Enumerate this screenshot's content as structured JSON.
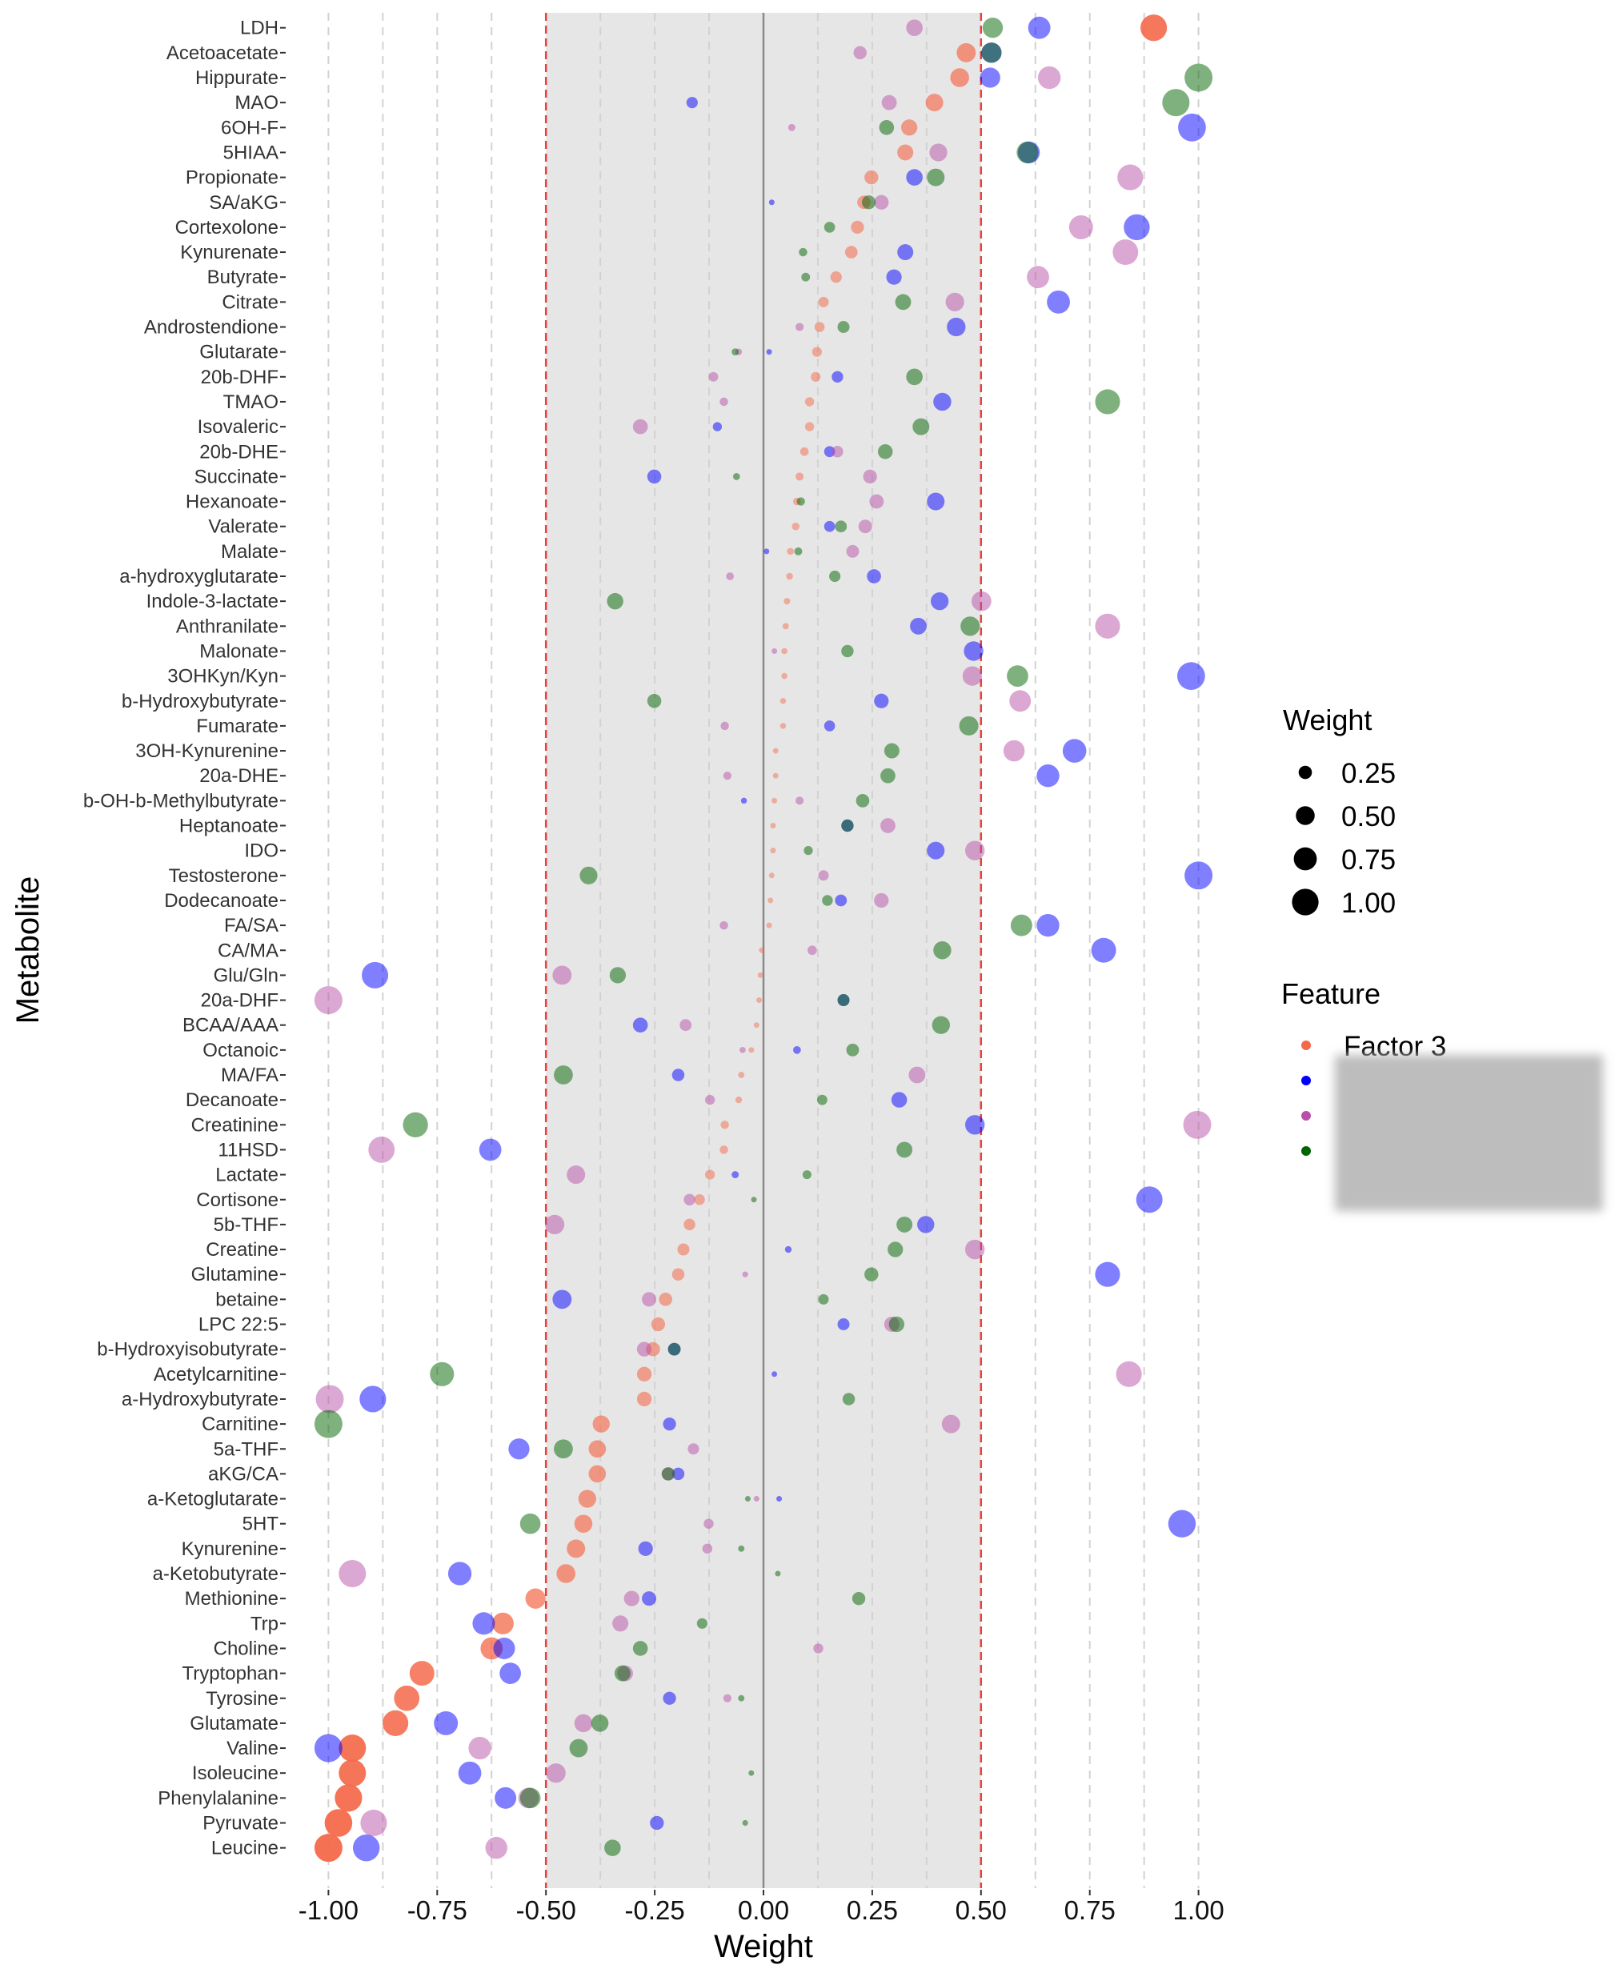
{
  "chart_data": {
    "type": "scatter",
    "xlabel": "Weight",
    "ylabel": "Metabolite",
    "xlim": [
      -1.0,
      1.0
    ],
    "xticks": [
      "-1.00",
      "-0.75",
      "-0.50",
      "-0.25",
      "0.00",
      "0.25",
      "0.50",
      "0.75",
      "1.00"
    ],
    "grid": true,
    "shaded_band": [
      -0.5,
      0.5
    ],
    "reference_lines": {
      "dashed_red": [
        -0.5,
        0.5
      ],
      "solid_gray": [
        0
      ]
    },
    "categories": [
      "LDH",
      "Acetoacetate",
      "Hippurate",
      "MAO",
      "6OH-F",
      "5HIAA",
      "Propionate",
      "SA/aKG",
      "Cortexolone",
      "Kynurenate",
      "Butyrate",
      "Citrate",
      "Androstendione",
      "Glutarate",
      "20b-DHF",
      "TMAO",
      "Isovaleric",
      "20b-DHE",
      "Succinate",
      "Hexanoate",
      "Valerate",
      "Malate",
      "a-hydroxyglutarate",
      "Indole-3-lactate",
      "Anthranilate",
      "Malonate",
      "3OHKyn/Kyn",
      "b-Hydroxybutyrate",
      "Fumarate",
      "3OH-Kynurenine",
      "20a-DHE",
      "b-OH-b-Methylbutyrate",
      "Heptanoate",
      "IDO",
      "Testosterone",
      "Dodecanoate",
      "FA/SA",
      "CA/MA",
      "Glu/Gln",
      "20a-DHF",
      "BCAA/AAA",
      "Octanoic",
      "MA/FA",
      "Decanoate",
      "Creatinine",
      "11HSD",
      "Lactate",
      "Cortisone",
      "5b-THF",
      "Creatine",
      "Glutamine",
      "betaine",
      "LPC 22:5",
      "b-Hydroxyisobutyrate",
      "Acetylcarnitine",
      "a-Hydroxybutyrate",
      "Carnitine",
      "5a-THF",
      "aKG/CA",
      "a-Ketoglutarate",
      "5HT",
      "Kynurenine",
      "a-Ketobutyrate",
      "Methionine",
      "Trp",
      "Choline",
      "Tryptophan",
      "Tyrosine",
      "Glutamate",
      "Valine",
      "Isoleucine",
      "Phenylalanine",
      "Pyruvate",
      "Leucine"
    ],
    "size_legend": {
      "title": "Weight",
      "labels": [
        "0.25",
        "0.50",
        "0.75",
        "1.00"
      ],
      "values": [
        0.25,
        0.5,
        0.75,
        1.0
      ]
    },
    "color_legend": {
      "title": "Feature",
      "redacted": true
    },
    "legend_position": "right",
    "series": [
      {
        "name": "Factor 3",
        "color": "#f4694a",
        "values": [
          0.897,
          0.466,
          0.451,
          0.393,
          0.335,
          0.326,
          0.248,
          0.231,
          0.216,
          0.202,
          0.167,
          0.138,
          0.129,
          0.123,
          0.12,
          0.106,
          0.106,
          0.094,
          0.083,
          0.077,
          0.074,
          0.062,
          0.06,
          0.054,
          0.051,
          0.048,
          0.048,
          0.045,
          0.045,
          0.028,
          0.028,
          0.025,
          0.022,
          0.022,
          0.019,
          0.016,
          0.013,
          -0.004,
          -0.007,
          -0.01,
          -0.016,
          -0.028,
          -0.051,
          -0.057,
          -0.089,
          -0.091,
          -0.123,
          -0.147,
          -0.17,
          -0.184,
          -0.196,
          -0.225,
          -0.242,
          -0.254,
          -0.274,
          -0.274,
          -0.373,
          -0.382,
          -0.382,
          -0.405,
          -0.414,
          -0.431,
          -0.454,
          -0.524,
          -0.599,
          -0.625,
          -0.785,
          -0.82,
          -0.846,
          -0.945,
          -0.945,
          -0.954,
          -0.977,
          -1.0
        ]
      },
      {
        "color": "#0000ff",
        "values": [
          0.634,
          0.524,
          0.521,
          -0.164,
          0.985,
          0.61,
          0.347,
          0.019,
          0.858,
          0.326,
          0.3,
          0.678,
          0.443,
          0.013,
          0.17,
          0.411,
          -0.106,
          0.152,
          -0.251,
          0.396,
          0.152,
          0.007,
          0.254,
          0.405,
          0.356,
          0.483,
          0.983,
          0.271,
          0.152,
          0.715,
          0.654,
          -0.045,
          0.193,
          0.396,
          1.0,
          0.178,
          0.654,
          0.782,
          -0.893,
          0.184,
          -0.283,
          0.077,
          -0.196,
          0.312,
          0.486,
          -0.628,
          -0.065,
          0.887,
          0.373,
          0.057,
          0.791,
          -0.463,
          0.184,
          -0.205,
          0.025,
          -0.898,
          -0.216,
          -0.562,
          -0.196,
          0.036,
          0.962,
          -0.271,
          -0.698,
          -0.263,
          -0.643,
          -0.596,
          -0.582,
          -0.216,
          -0.73,
          -1.0,
          -0.675,
          -0.593,
          -0.245,
          -0.913
        ]
      },
      {
        "color": "#b84fa8",
        "values": [
          0.347,
          0.222,
          0.657,
          0.289,
          0.065,
          0.402,
          0.843,
          0.271,
          0.73,
          0.832,
          0.631,
          0.44,
          0.083,
          -0.057,
          -0.115,
          -0.091,
          -0.283,
          0.17,
          0.245,
          0.26,
          0.234,
          0.205,
          -0.077,
          0.501,
          0.791,
          0.025,
          0.48,
          0.59,
          -0.089,
          0.576,
          -0.083,
          0.083,
          0.286,
          0.486,
          0.138,
          0.271,
          -0.091,
          0.112,
          -0.463,
          -1.0,
          -0.179,
          -0.048,
          0.353,
          -0.123,
          0.997,
          -0.878,
          -0.431,
          -0.17,
          -0.48,
          0.486,
          -0.042,
          -0.263,
          0.295,
          -0.274,
          0.84,
          -0.997,
          0.431,
          -0.161,
          -0.219,
          -0.016,
          -0.126,
          -0.129,
          -0.945,
          -0.303,
          -0.329,
          0.126,
          -0.318,
          -0.083,
          -0.414,
          -0.652,
          -0.477,
          -0.54,
          -0.896,
          -0.614
        ]
      },
      {
        "color": "#006400",
        "values": [
          0.527,
          0.524,
          1.0,
          0.948,
          0.283,
          0.607,
          0.396,
          0.242,
          0.152,
          0.091,
          0.097,
          0.321,
          0.184,
          -0.065,
          0.347,
          0.791,
          0.362,
          0.28,
          -0.062,
          0.086,
          0.178,
          0.08,
          0.164,
          -0.341,
          0.475,
          0.193,
          0.584,
          -0.251,
          0.472,
          0.295,
          0.286,
          0.228,
          0.193,
          0.103,
          -0.402,
          0.147,
          0.593,
          0.411,
          -0.335,
          0.184,
          0.408,
          0.205,
          -0.46,
          0.135,
          -0.8,
          0.324,
          0.1,
          -0.022,
          0.324,
          0.303,
          0.248,
          0.138,
          0.306,
          -0.205,
          -0.739,
          0.196,
          -1.0,
          -0.46,
          -0.219,
          -0.036,
          -0.536,
          -0.051,
          0.033,
          0.219,
          -0.141,
          -0.283,
          -0.324,
          -0.051,
          -0.376,
          -0.425,
          -0.028,
          -0.536,
          -0.042,
          -0.347
        ]
      }
    ]
  }
}
